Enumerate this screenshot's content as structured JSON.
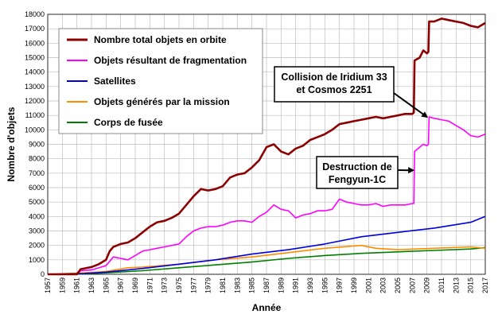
{
  "chart_data": {
    "type": "line",
    "title": "",
    "xlabel": "Année",
    "ylabel": "Nombre d'objets",
    "xlim": [
      1957,
      2017
    ],
    "ylim": [
      0,
      18000
    ],
    "x_ticks": [
      1957,
      1959,
      1961,
      1963,
      1965,
      1967,
      1969,
      1971,
      1973,
      1975,
      1977,
      1979,
      1981,
      1983,
      1985,
      1987,
      1989,
      1991,
      1993,
      1995,
      1997,
      1999,
      2001,
      2003,
      2005,
      2007,
      2009,
      2011,
      2013,
      2015,
      2017
    ],
    "y_ticks": [
      0,
      1000,
      2000,
      3000,
      4000,
      5000,
      6000,
      7000,
      8000,
      9000,
      10000,
      11000,
      12000,
      13000,
      14000,
      15000,
      16000,
      17000,
      18000
    ],
    "grid": true,
    "legend_position": "top-left",
    "series": [
      {
        "name": "Nombre total objets en orbite",
        "color": "#8b0000",
        "x": [
          1957,
          1961,
          1961.5,
          1963,
          1964,
          1965,
          1965.5,
          1966,
          1967,
          1968,
          1969,
          1970,
          1971,
          1972,
          1973,
          1974,
          1975,
          1976,
          1977,
          1978,
          1979,
          1980,
          1981,
          1982,
          1983,
          1984,
          1985,
          1986,
          1987,
          1988,
          1989,
          1990,
          1991,
          1992,
          1993,
          1994,
          1995,
          1996,
          1997,
          1998,
          1999,
          2000,
          2001,
          2002,
          2003,
          2004,
          2005,
          2006,
          2007,
          2007.2,
          2007.3,
          2008,
          2008.5,
          2009,
          2009.2,
          2009.3,
          2010,
          2011,
          2012,
          2013,
          2014,
          2015,
          2016,
          2017
        ],
        "y": [
          0,
          0,
          350,
          500,
          700,
          1000,
          1600,
          1900,
          2100,
          2200,
          2500,
          2900,
          3300,
          3600,
          3700,
          3900,
          4200,
          4800,
          5400,
          5900,
          5800,
          5900,
          6100,
          6700,
          6900,
          7000,
          7400,
          7900,
          8800,
          9000,
          8500,
          8300,
          8700,
          8900,
          9300,
          9500,
          9700,
          10000,
          10400,
          10500,
          10600,
          10700,
          10800,
          10900,
          10800,
          10900,
          11000,
          11100,
          11100,
          11200,
          14800,
          15000,
          15500,
          15300,
          15400,
          17500,
          17500,
          17700,
          17600,
          17500,
          17400,
          17200,
          17100,
          17400
        ]
      },
      {
        "name": "Objets résultant de fragmentation",
        "color": "#ff00ff",
        "x": [
          1957,
          1961,
          1961.5,
          1963,
          1965,
          1966,
          1967,
          1968,
          1969,
          1970,
          1971,
          1972,
          1973,
          1974,
          1975,
          1976,
          1977,
          1978,
          1979,
          1980,
          1981,
          1982,
          1983,
          1984,
          1985,
          1986,
          1987,
          1988,
          1989,
          1990,
          1991,
          1992,
          1993,
          1994,
          1995,
          1996,
          1997,
          1998,
          1999,
          2000,
          2001,
          2002,
          2003,
          2004,
          2005,
          2006,
          2007,
          2007.2,
          2007.3,
          2008,
          2008.5,
          2009,
          2009.2,
          2009.3,
          2010,
          2011,
          2012,
          2013,
          2014,
          2015,
          2016,
          2017
        ],
        "y": [
          0,
          0,
          250,
          300,
          600,
          1200,
          1100,
          1000,
          1300,
          1600,
          1700,
          1800,
          1900,
          2000,
          2100,
          2600,
          3000,
          3200,
          3300,
          3300,
          3400,
          3600,
          3700,
          3700,
          3600,
          4000,
          4300,
          4800,
          4500,
          4400,
          3900,
          4100,
          4200,
          4400,
          4400,
          4500,
          5200,
          5000,
          4900,
          4800,
          4800,
          4900,
          4700,
          4800,
          4800,
          4800,
          4900,
          4900,
          8500,
          8800,
          9000,
          8900,
          9000,
          10900,
          10800,
          10700,
          10600,
          10300,
          10000,
          9600,
          9500,
          9700
        ]
      },
      {
        "name": "Satellites",
        "color": "#0000dd",
        "x": [
          1957,
          1962,
          1965,
          1970,
          1975,
          1980,
          1985,
          1990,
          1995,
          2000,
          2005,
          2010,
          2015,
          2017
        ],
        "y": [
          0,
          50,
          150,
          400,
          700,
          1000,
          1400,
          1700,
          2100,
          2600,
          2900,
          3200,
          3600,
          4000
        ]
      },
      {
        "name": "Objets générés par la mission",
        "color": "#ff8c00",
        "x": [
          1957,
          1962,
          1965,
          1968,
          1970,
          1975,
          1980,
          1985,
          1990,
          1995,
          2000,
          2002,
          2005,
          2010,
          2015,
          2017
        ],
        "y": [
          0,
          100,
          200,
          450,
          500,
          700,
          1000,
          1200,
          1500,
          1800,
          2000,
          1800,
          1700,
          1800,
          1900,
          1800
        ]
      },
      {
        "name": "Corps de fusée",
        "color": "#008000",
        "x": [
          1957,
          1962,
          1965,
          1970,
          1975,
          1980,
          1985,
          1990,
          1995,
          2000,
          2005,
          2010,
          2015,
          2017
        ],
        "y": [
          0,
          30,
          100,
          250,
          450,
          650,
          850,
          1100,
          1300,
          1450,
          1550,
          1650,
          1750,
          1850
        ]
      }
    ],
    "annotations": [
      {
        "lines": [
          "Collision de Iridium 33",
          "et Cosmos 2251"
        ],
        "target_x": 2009.2,
        "target_y": 10900
      },
      {
        "lines": [
          "Destruction de",
          "Fengyun-1C"
        ],
        "target_x": 2007.3,
        "target_y": 7200
      }
    ]
  }
}
